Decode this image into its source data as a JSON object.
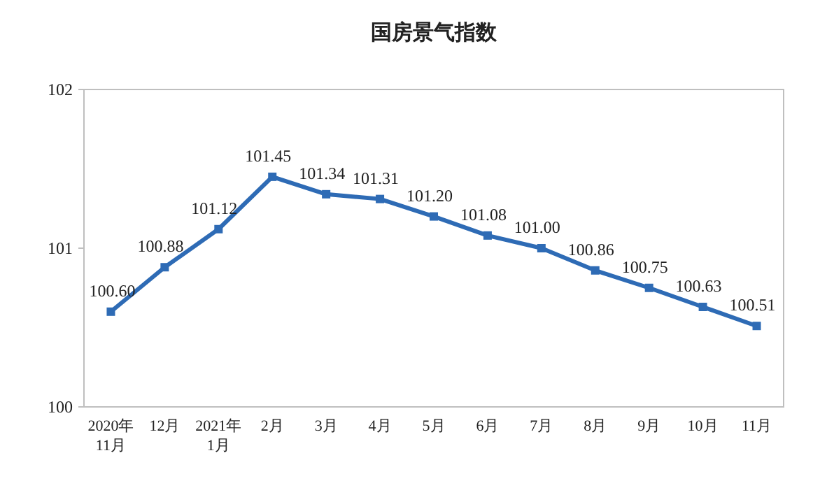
{
  "chart_data": {
    "type": "line",
    "title": "国房景气指数",
    "categories": [
      "2020年\n11月",
      "12月",
      "2021年\n1月",
      "2月",
      "3月",
      "4月",
      "5月",
      "6月",
      "7月",
      "8月",
      "9月",
      "10月",
      "11月"
    ],
    "values": [
      100.6,
      100.88,
      101.12,
      101.45,
      101.34,
      101.31,
      101.2,
      101.08,
      101.0,
      100.86,
      100.75,
      100.63,
      100.51
    ],
    "color": "#2e6bb5",
    "ylim": [
      100,
      102
    ],
    "yticks": [
      100,
      101,
      102
    ],
    "value_labels": [
      "100.60",
      "100.88",
      "101.12",
      "101.45",
      "101.34",
      "101.31",
      "101.20",
      "101.08",
      "101.00",
      "100.86",
      "100.75",
      "100.63",
      "100.51"
    ],
    "marker": "square",
    "line_style": "solid"
  }
}
